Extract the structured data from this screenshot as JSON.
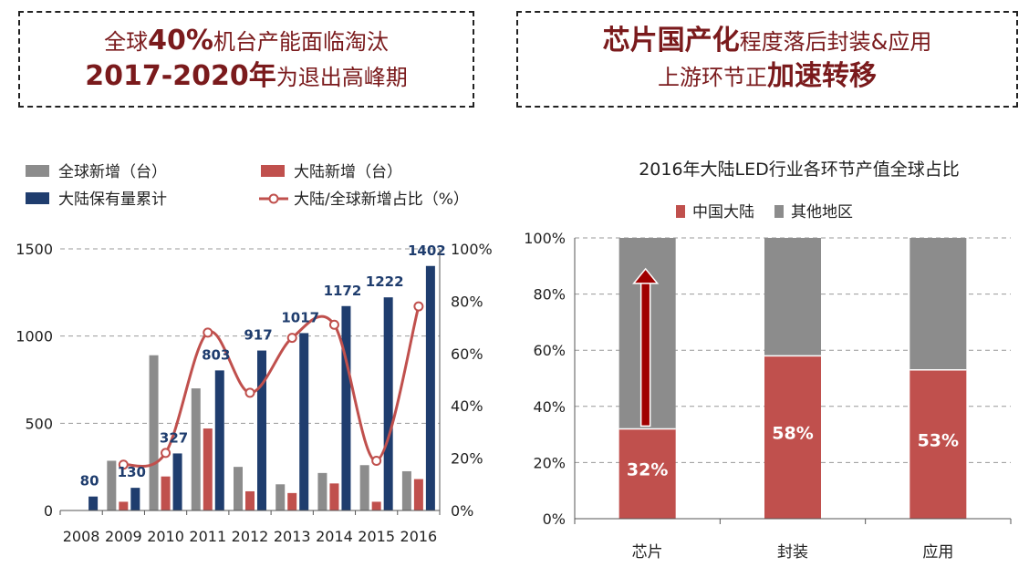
{
  "headline_left": {
    "line1_pre": "全球",
    "line1_bold": "40%",
    "line1_post": "机台产能面临淘汰",
    "line2_bold": "2017-2020年",
    "line2_post": "为退出高峰期"
  },
  "headline_right": {
    "line1_bold": "芯片国产化",
    "line1_post": "程度落后封装&应用",
    "line2_pre": "上游环节正",
    "line2_bold": "加速转移"
  },
  "colors": {
    "global_new": "#8c8c8c",
    "mainland_new": "#c0504d",
    "mainland_total": "#1f3d6e",
    "share_line": "#c0504d",
    "label_blue": "#1f3d6e",
    "headline": "#7a1a1c",
    "arrow": "#a00000"
  },
  "chart_data": [
    {
      "type": "bar",
      "categories": [
        "2008",
        "2009",
        "2010",
        "2011",
        "2012",
        "2013",
        "2014",
        "2015",
        "2016"
      ],
      "series": [
        {
          "name": "全球新增（台）",
          "values": [
            0,
            285,
            890,
            700,
            250,
            150,
            215,
            260,
            225
          ],
          "axis": "left"
        },
        {
          "name": "大陆新增（台）",
          "values": [
            0,
            50,
            195,
            470,
            110,
            100,
            155,
            50,
            180
          ],
          "axis": "left"
        },
        {
          "name": "大陆保有量累计",
          "values": [
            80,
            130,
            327,
            803,
            917,
            1017,
            1172,
            1222,
            1402
          ],
          "axis": "left"
        },
        {
          "name": "大陆/全球新增占比（%）",
          "type": "line",
          "values": [
            null,
            17.5,
            22,
            68,
            45,
            66,
            71,
            19,
            78
          ],
          "axis": "right"
        }
      ],
      "data_labels": [
        "80",
        "130",
        "327",
        "803",
        "917",
        "1017",
        "1172",
        "1222",
        "1402"
      ],
      "yticks_left": [
        "0",
        "500",
        "1000",
        "1500"
      ],
      "ylim_left": [
        0,
        1500
      ],
      "yticks_right": [
        "0%",
        "20%",
        "40%",
        "60%",
        "80%",
        "100%"
      ],
      "ylim_right": [
        0,
        100
      ],
      "legend": [
        "全球新增（台）",
        "大陆新增（台）",
        "大陆保有量累计",
        "大陆/全球新增占比（%）"
      ]
    },
    {
      "type": "bar",
      "stacked": true,
      "title": "2016年大陆LED行业各环节产值全球占比",
      "categories": [
        "芯片",
        "封装",
        "应用"
      ],
      "series": [
        {
          "name": "中国大陆",
          "values": [
            32,
            58,
            53
          ]
        },
        {
          "name": "其他地区",
          "values": [
            68,
            42,
            47
          ]
        }
      ],
      "data_labels": [
        "32%",
        "58%",
        "53%"
      ],
      "yticks": [
        "0%",
        "20%",
        "40%",
        "60%",
        "80%",
        "100%"
      ],
      "ylim": [
        0,
        100
      ],
      "legend": [
        "中国大陆",
        "其他地区"
      ]
    }
  ]
}
